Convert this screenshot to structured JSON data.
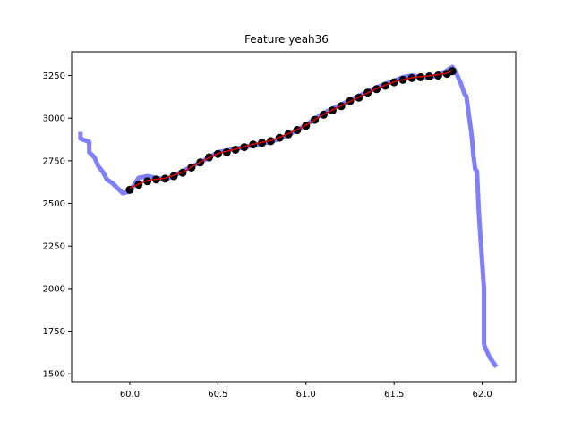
{
  "chart_data": {
    "type": "line",
    "title": "Feature yeah36",
    "xlabel": "",
    "ylabel": "",
    "xlim": [
      59.67,
      62.19
    ],
    "ylim": [
      1454,
      3389
    ],
    "x_ticks": [
      60.0,
      60.5,
      61.0,
      61.5,
      62.0
    ],
    "x_tick_labels": [
      "60.0",
      "60.5",
      "61.0",
      "61.5",
      "62.0"
    ],
    "y_ticks": [
      1500,
      1750,
      2000,
      2250,
      2500,
      2750,
      3000,
      3250
    ],
    "y_tick_labels": [
      "1500",
      "1750",
      "2000",
      "2250",
      "2500",
      "2750",
      "3000",
      "3250"
    ],
    "grid": false,
    "legend": "none",
    "series": [
      {
        "style": "thick-line",
        "color": "#8080ff",
        "x": [
          59.72,
          59.72,
          59.77,
          59.77,
          59.8,
          59.82,
          59.85,
          59.87,
          59.9,
          59.92,
          59.94,
          59.96,
          60.0,
          60.05,
          60.1,
          60.15,
          60.2,
          60.25,
          60.3,
          60.4,
          60.5,
          60.6,
          60.7,
          60.8,
          60.9,
          61.0,
          61.1,
          61.2,
          61.3,
          61.4,
          61.5,
          61.55,
          61.6,
          61.65,
          61.7,
          61.75,
          61.8,
          61.83,
          61.85,
          61.88,
          61.9,
          61.91,
          61.92,
          61.94,
          61.95,
          61.96,
          61.97,
          61.98,
          61.99,
          62.01,
          62.01,
          62.04,
          62.08
        ],
        "y": [
          2920,
          2880,
          2860,
          2800,
          2770,
          2720,
          2680,
          2640,
          2620,
          2600,
          2580,
          2560,
          2570,
          2650,
          2660,
          2650,
          2640,
          2660,
          2690,
          2740,
          2800,
          2820,
          2840,
          2860,
          2900,
          2960,
          3030,
          3080,
          3130,
          3180,
          3220,
          3240,
          3250,
          3240,
          3240,
          3250,
          3280,
          3300,
          3270,
          3200,
          3140,
          3130,
          3050,
          2900,
          2780,
          2700,
          2690,
          2460,
          2300,
          2000,
          1670,
          1600,
          1540
        ]
      },
      {
        "style": "markers",
        "color": "#000000",
        "x": [
          60.0,
          60.05,
          60.1,
          60.15,
          60.2,
          60.25,
          60.3,
          60.35,
          60.4,
          60.45,
          60.5,
          60.55,
          60.6,
          60.65,
          60.7,
          60.75,
          60.8,
          60.85,
          60.9,
          60.95,
          61.0,
          61.05,
          61.1,
          61.15,
          61.2,
          61.25,
          61.3,
          61.35,
          61.4,
          61.45,
          61.5,
          61.55,
          61.6,
          61.65,
          61.7,
          61.75,
          61.8,
          61.83
        ],
        "y": [
          2580,
          2610,
          2630,
          2640,
          2645,
          2660,
          2680,
          2710,
          2740,
          2770,
          2790,
          2800,
          2815,
          2830,
          2845,
          2855,
          2865,
          2885,
          2905,
          2930,
          2955,
          2990,
          3020,
          3045,
          3070,
          3100,
          3120,
          3150,
          3170,
          3190,
          3210,
          3225,
          3235,
          3240,
          3245,
          3250,
          3260,
          3275
        ]
      },
      {
        "style": "thin-line",
        "color": "#dd0000",
        "x": [
          60.0,
          60.1,
          60.2,
          60.3,
          60.4,
          60.5,
          60.6,
          60.7,
          60.8,
          60.9,
          61.0,
          61.1,
          61.2,
          61.3,
          61.4,
          61.5,
          61.6,
          61.7,
          61.8,
          61.83
        ],
        "y": [
          2590,
          2635,
          2648,
          2683,
          2743,
          2793,
          2818,
          2848,
          2868,
          2908,
          2958,
          3023,
          3073,
          3123,
          3173,
          3213,
          3238,
          3248,
          3263,
          3280
        ]
      }
    ]
  }
}
